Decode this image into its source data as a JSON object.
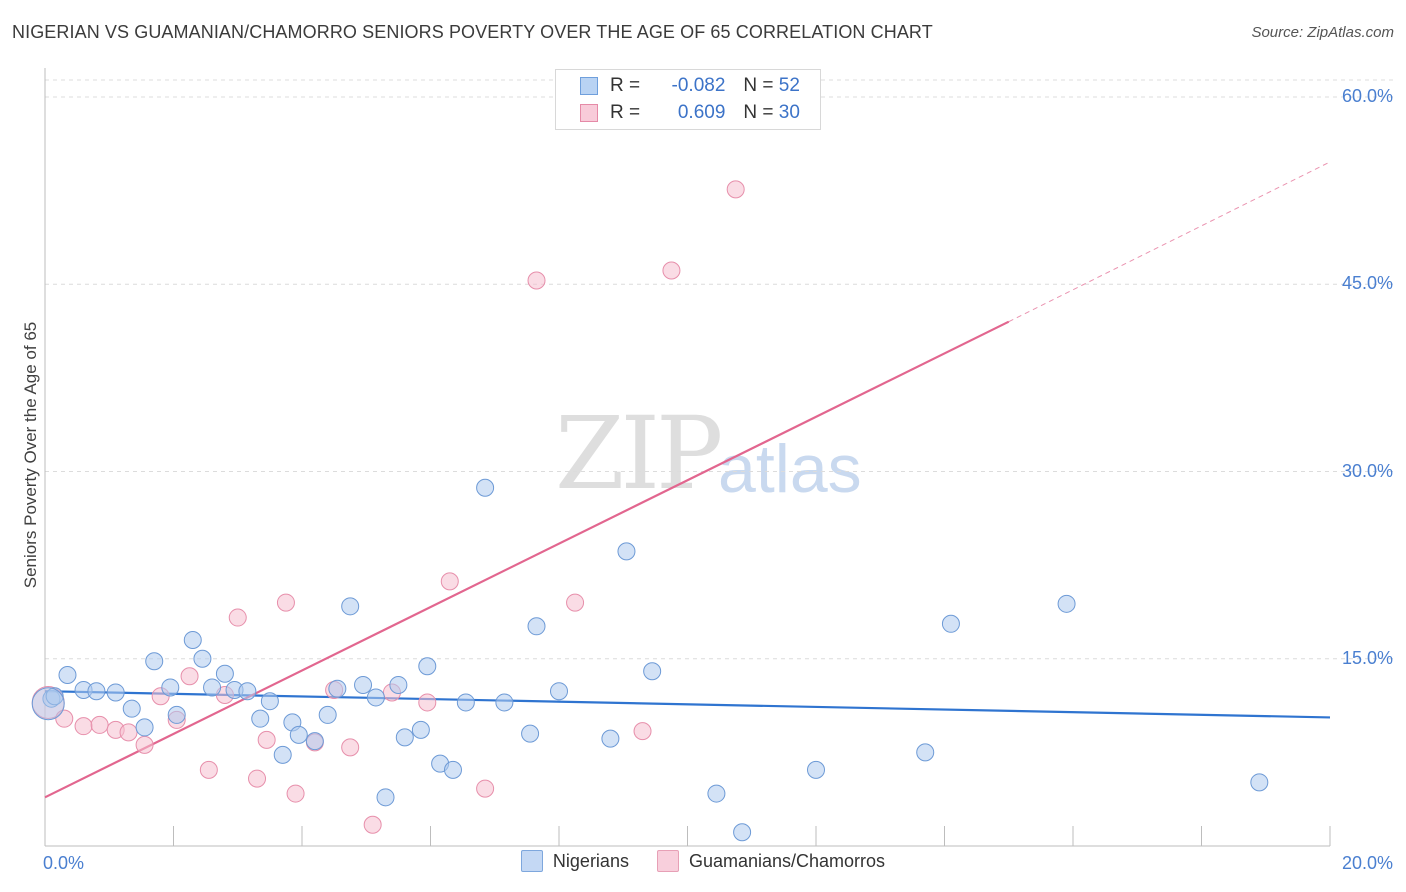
{
  "title": "NIGERIAN VS GUAMANIAN/CHAMORRO SENIORS POVERTY OVER THE AGE OF 65 CORRELATION CHART",
  "source": "Source: ZipAtlas.com",
  "watermark": {
    "zip": "ZIP",
    "atlas": "atlas"
  },
  "stats": [
    {
      "r_label": "R =",
      "r_value": "-0.082",
      "n_label": "N =",
      "n_value": "52",
      "color": "#a9c8f1",
      "border": "#6f9fdc"
    },
    {
      "r_label": "R =",
      "r_value": "0.609",
      "n_label": "N =",
      "n_value": "30",
      "color": "#f6c1d2",
      "border": "#e58aa7"
    }
  ],
  "legend": [
    {
      "label": "Nigerians",
      "color": "#c4d8f4",
      "border": "#7ea7dd"
    },
    {
      "label": "Guamanians/Chamorros",
      "color": "#f8cfdc",
      "border": "#e7a0b6"
    }
  ],
  "colors": {
    "blue_fill": "#aecbef",
    "blue_stroke": "#6d9ad6",
    "blue_line": "#2f74d0",
    "pink_fill": "#f6bfd0",
    "pink_stroke": "#e78fab",
    "pink_line": "#e2668f",
    "grid": "#dcdcdc",
    "axis": "#bdbdbd"
  },
  "chart_data": {
    "type": "scatter",
    "title": "NIGERIAN VS GUAMANIAN/CHAMORRO SENIORS POVERTY OVER THE AGE OF 65 CORRELATION CHART",
    "xlabel": "",
    "ylabel": "Seniors Poverty Over the Age of 65",
    "xlim": [
      0,
      20
    ],
    "ylim": [
      0,
      60
    ],
    "x_tick_labels": [
      "0.0%",
      "20.0%"
    ],
    "y_tick_values": [
      15,
      30,
      45,
      60
    ],
    "y_tick_labels": [
      "15.0%",
      "30.0%",
      "45.0%",
      "60.0%"
    ],
    "grid": true,
    "legend_position": "bottom",
    "series": [
      {
        "name": "Nigerians",
        "r": -0.082,
        "n": 52,
        "trend": {
          "x": [
            0,
            20
          ],
          "y": [
            12.4,
            10.3
          ]
        },
        "points": [
          [
            0.1,
            11.8
          ],
          [
            0.15,
            12.0
          ],
          [
            0.35,
            13.7
          ],
          [
            0.6,
            12.5
          ],
          [
            0.8,
            12.4
          ],
          [
            1.1,
            12.3
          ],
          [
            1.35,
            11.0
          ],
          [
            1.55,
            9.5
          ],
          [
            1.7,
            14.8
          ],
          [
            1.95,
            12.7
          ],
          [
            2.05,
            10.5
          ],
          [
            2.3,
            16.5
          ],
          [
            2.45,
            15.0
          ],
          [
            2.6,
            12.7
          ],
          [
            2.8,
            13.8
          ],
          [
            2.95,
            12.5
          ],
          [
            3.15,
            12.4
          ],
          [
            3.35,
            10.2
          ],
          [
            3.5,
            11.6
          ],
          [
            3.7,
            7.3
          ],
          [
            3.85,
            9.9
          ],
          [
            3.95,
            8.9
          ],
          [
            4.2,
            8.4
          ],
          [
            4.4,
            10.5
          ],
          [
            4.55,
            12.6
          ],
          [
            4.75,
            19.2
          ],
          [
            4.95,
            12.9
          ],
          [
            5.15,
            11.9
          ],
          [
            5.3,
            3.9
          ],
          [
            5.5,
            12.9
          ],
          [
            5.6,
            8.7
          ],
          [
            5.85,
            9.3
          ],
          [
            5.95,
            14.4
          ],
          [
            6.15,
            6.6
          ],
          [
            6.35,
            6.1
          ],
          [
            6.55,
            11.5
          ],
          [
            6.85,
            28.7
          ],
          [
            7.15,
            11.5
          ],
          [
            7.55,
            9.0
          ],
          [
            7.65,
            17.6
          ],
          [
            8.0,
            12.4
          ],
          [
            8.8,
            8.6
          ],
          [
            9.05,
            23.6
          ],
          [
            9.45,
            14.0
          ],
          [
            10.45,
            4.2
          ],
          [
            10.85,
            1.1
          ],
          [
            12.0,
            6.1
          ],
          [
            13.7,
            7.5
          ],
          [
            14.1,
            17.8
          ],
          [
            15.9,
            19.4
          ],
          [
            18.9,
            5.1
          ],
          [
            0.05,
            11.4
          ]
        ]
      },
      {
        "name": "Guamanians/Chamorros",
        "r": 0.609,
        "n": 30,
        "trend": {
          "x": [
            0,
            15
          ],
          "y": [
            3.9,
            42.0
          ]
        },
        "trend_extension": {
          "x": [
            15,
            20
          ],
          "y": [
            42.0,
            54.8
          ]
        },
        "points": [
          [
            0.05,
            11.5
          ],
          [
            0.3,
            10.2
          ],
          [
            0.6,
            9.6
          ],
          [
            0.85,
            9.7
          ],
          [
            1.1,
            9.3
          ],
          [
            1.3,
            9.1
          ],
          [
            1.55,
            8.1
          ],
          [
            1.8,
            12.0
          ],
          [
            2.05,
            10.1
          ],
          [
            2.25,
            13.6
          ],
          [
            2.55,
            6.1
          ],
          [
            2.8,
            12.1
          ],
          [
            3.0,
            18.3
          ],
          [
            3.3,
            5.4
          ],
          [
            3.45,
            8.5
          ],
          [
            3.75,
            19.5
          ],
          [
            3.9,
            4.2
          ],
          [
            4.2,
            8.3
          ],
          [
            4.5,
            12.5
          ],
          [
            4.75,
            7.9
          ],
          [
            5.1,
            1.7
          ],
          [
            5.4,
            12.3
          ],
          [
            5.95,
            11.5
          ],
          [
            6.3,
            21.2
          ],
          [
            6.85,
            4.6
          ],
          [
            7.65,
            45.3
          ],
          [
            8.25,
            19.5
          ],
          [
            9.3,
            9.2
          ],
          [
            9.75,
            46.1
          ],
          [
            10.75,
            52.6
          ]
        ]
      }
    ]
  }
}
